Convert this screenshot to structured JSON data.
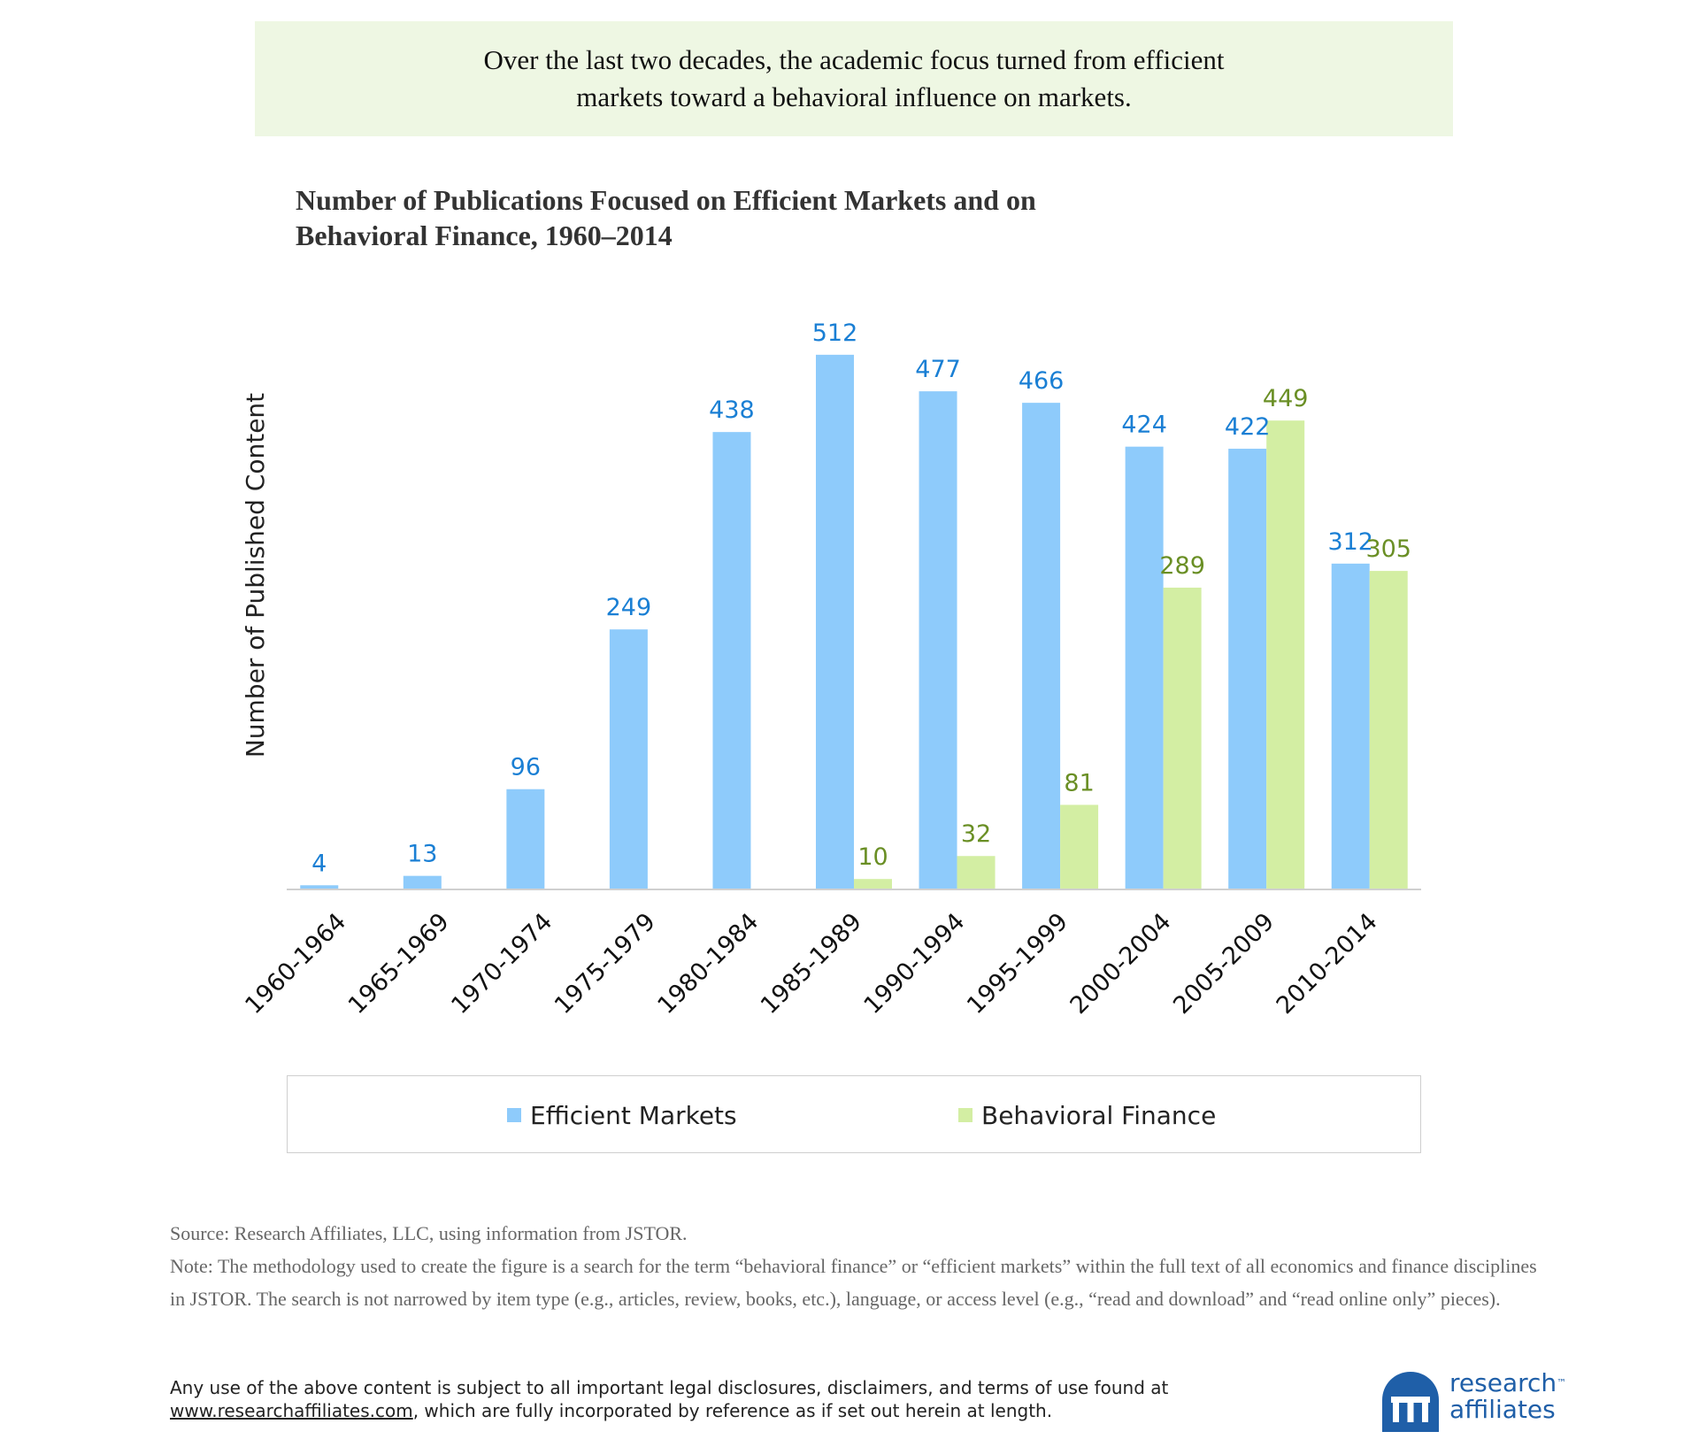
{
  "banner": {
    "line1": "Over the last two decades, the academic focus turned from efficient",
    "line2": "markets toward a behavioral influence on markets."
  },
  "chart_data": {
    "type": "bar",
    "title": "Number of Publications Focused on Efficient Markets and on Behavioral Finance, 1960–2014",
    "title_line1": "Number of Publications Focused on Efficient Markets and on",
    "title_line2": "Behavioral Finance, 1960–2014",
    "xlabel": "",
    "ylabel": "Number of Published Content",
    "ylim": [
      0,
      600
    ],
    "grid": false,
    "legend_position": "bottom",
    "categories": [
      "1960-1964",
      "1965-1969",
      "1970-1974",
      "1975-1979",
      "1980-1984",
      "1985-1989",
      "1990-1994",
      "1995-1999",
      "2000-2004",
      "2005-2009",
      "2010-2014"
    ],
    "series": [
      {
        "name": "Efficient Markets",
        "color": "#8ecbfb",
        "label_color": "#1a7fd4",
        "values": [
          4,
          13,
          96,
          249,
          438,
          512,
          477,
          466,
          424,
          422,
          312
        ]
      },
      {
        "name": "Behavioral Finance",
        "color": "#d3eea3",
        "label_color": "#6a8f25",
        "values": [
          null,
          null,
          null,
          null,
          null,
          10,
          32,
          81,
          289,
          449,
          305
        ]
      }
    ]
  },
  "notes": {
    "source": "Source: Research Affiliates, LLC, using information from JSTOR.",
    "note": "Note: The methodology used to create the figure is a search for the term “behavioral finance” or “efficient markets” within the full text of all economics and finance disciplines in JSTOR. The search is not narrowed by item type (e.g., articles, review, books, etc.), language, or access level (e.g., “read and download” and “read online only” pieces)."
  },
  "disclaimer": {
    "line1": "Any use of the above content is subject to all important legal disclosures, disclaimers, and terms of use found at",
    "link": "www.researchaffiliates.com",
    "line2_rest": ", which are fully incorporated by reference as if set out herein at length."
  },
  "logo": {
    "line1": "research",
    "tm": "™",
    "line2": "affiliates",
    "icon": "research-affiliates-logo-icon",
    "color": "#1f5fa8"
  }
}
